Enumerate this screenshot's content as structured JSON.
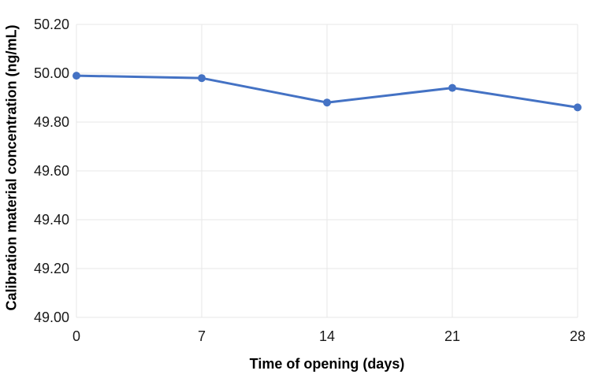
{
  "chart_data": {
    "type": "line",
    "x": [
      0,
      7,
      14,
      21,
      28
    ],
    "values": [
      49.99,
      49.98,
      49.88,
      49.94,
      49.86
    ],
    "title": "",
    "xlabel": "Time of opening (days)",
    "ylabel": "Calibration material concentration (ng/mL)",
    "xlim": [
      0,
      28
    ],
    "ylim": [
      49.0,
      50.2
    ],
    "xticks": [
      "0",
      "7",
      "14",
      "21",
      "28"
    ],
    "yticks": [
      "49.00",
      "49.20",
      "49.40",
      "49.60",
      "49.80",
      "50.00",
      "50.20"
    ],
    "grid": "both",
    "legend": "none",
    "marker": "circle",
    "colors": {
      "series": "#4472C4",
      "grid": "#E7E7E7",
      "tick_text": "#1A1A1A",
      "title_text": "#000000"
    }
  }
}
